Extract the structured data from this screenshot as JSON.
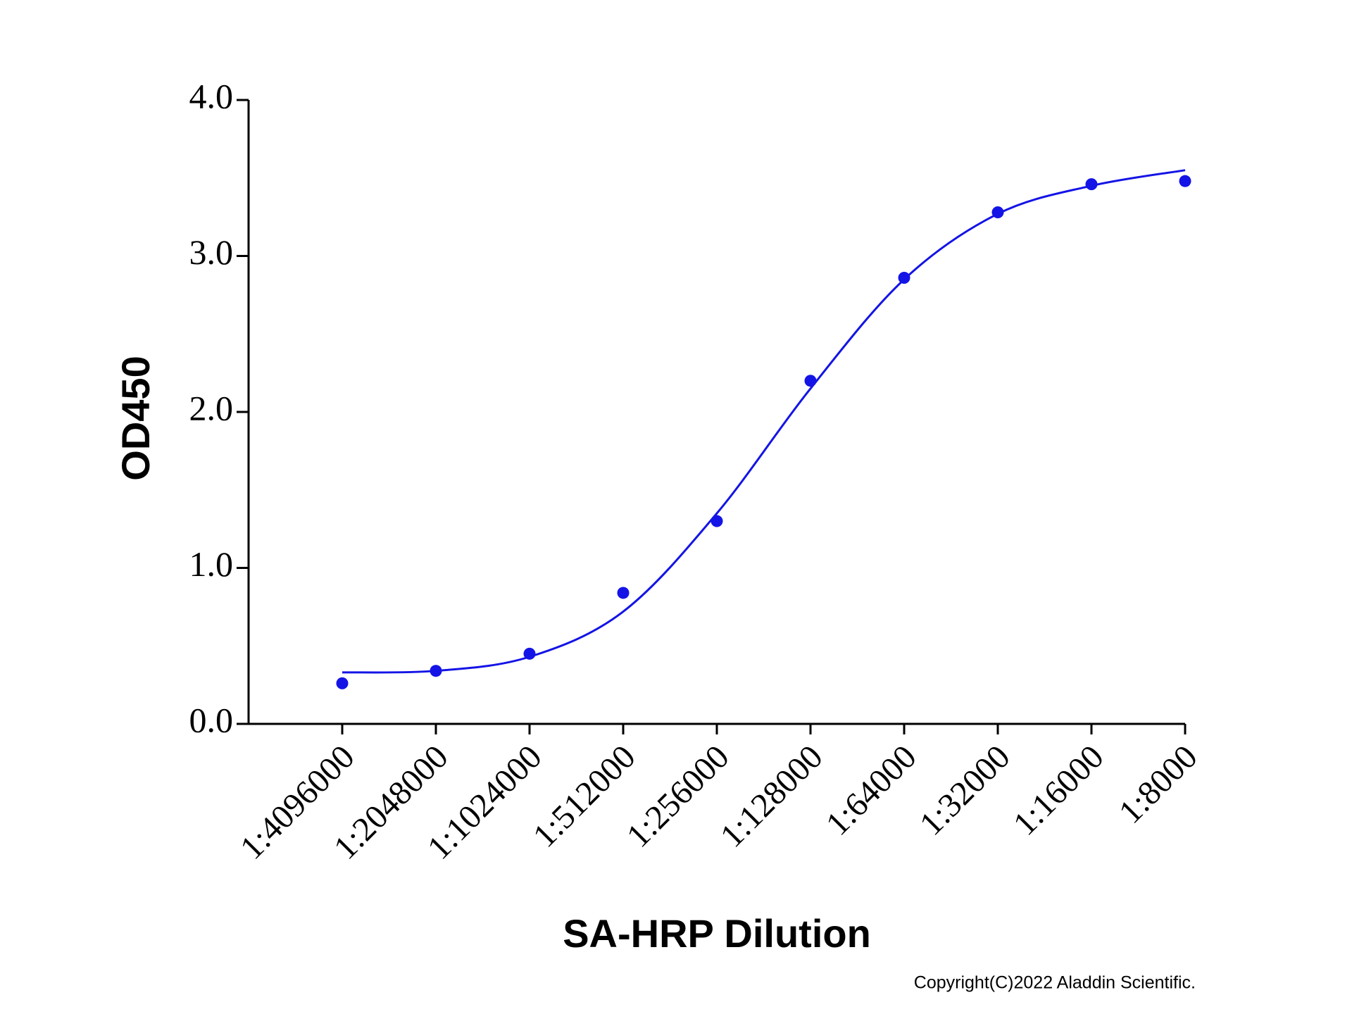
{
  "chart_data": {
    "type": "scatter",
    "x_label": "SA-HRP Dilution",
    "y_label": "OD450",
    "categories": [
      "1:4096000",
      "1:2048000",
      "1:1024000",
      "1:512000",
      "1:256000",
      "1:128000",
      "1:64000",
      "1:32000",
      "1:16000",
      "1:8000"
    ],
    "series": [
      {
        "color": "#1414e6",
        "style": "dots",
        "values": [
          0.26,
          0.34,
          0.45,
          0.84,
          1.3,
          2.2,
          2.86,
          3.28,
          3.46,
          3.48
        ]
      },
      {
        "color": "#1414e6",
        "style": "curve",
        "values": [
          0.33,
          0.34,
          0.43,
          0.72,
          1.35,
          2.15,
          2.85,
          3.27,
          3.45,
          3.55
        ]
      }
    ],
    "ylim": [
      0,
      4
    ],
    "yticks": [
      {
        "value": 0,
        "label": "0.0"
      },
      {
        "value": 1,
        "label": "1.0"
      },
      {
        "value": 2,
        "label": "2.0"
      },
      {
        "value": 3,
        "label": "3.0"
      },
      {
        "value": 4,
        "label": "4.0"
      }
    ],
    "note": "Copyright(C)2022 Aladdin Scientific."
  }
}
